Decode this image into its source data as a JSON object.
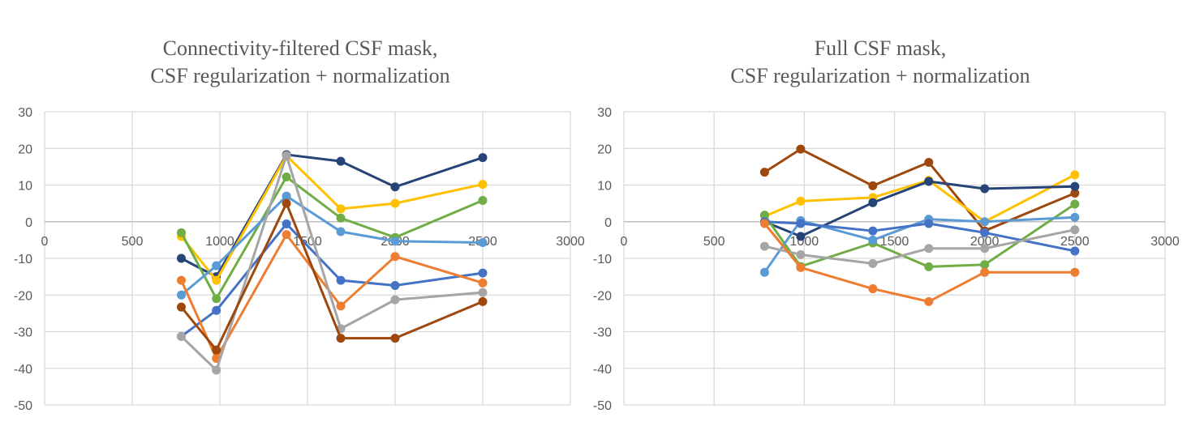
{
  "chart_data": [
    {
      "type": "line",
      "title": [
        "Connectivity-filtered CSF mask,",
        "CSF regularization + normalization"
      ],
      "xlabel": "",
      "ylabel": "",
      "xlim": [
        0,
        3000
      ],
      "ylim": [
        -50,
        30
      ],
      "xticks": [
        0,
        500,
        1000,
        1500,
        2000,
        2500,
        3000
      ],
      "yticks": [
        30,
        20,
        10,
        0,
        -10,
        -20,
        -30,
        -40,
        -50
      ],
      "grid": true,
      "legend": "none",
      "x": [
        780,
        980,
        1380,
        1690,
        2000,
        2500
      ],
      "series": [
        {
          "color": "#264478",
          "values": [
            -10,
            -15,
            18.3,
            16.5,
            9.5,
            17.5
          ]
        },
        {
          "color": "#FFC000",
          "values": [
            -4,
            -16,
            18,
            3.5,
            5,
            10.2
          ]
        },
        {
          "color": "#70AD47",
          "values": [
            -3,
            -21,
            12.2,
            1,
            -4.3,
            5.8
          ]
        },
        {
          "color": "#5B9BD5",
          "values": [
            -20,
            -12,
            7,
            -2.7,
            -5.3,
            -5.7
          ]
        },
        {
          "color": "#4472C4",
          "values": [
            -31.3,
            -24.2,
            -0.6,
            -16,
            -17.4,
            -14
          ]
        },
        {
          "color": "#ED7D31",
          "values": [
            -16,
            -37.3,
            -3.5,
            -23,
            -9.5,
            -16.7
          ]
        },
        {
          "color": "#A5A5A5",
          "values": [
            -31.3,
            -40.5,
            18,
            -29.2,
            -21.3,
            -19.3
          ]
        },
        {
          "color": "#9E480E",
          "values": [
            -23.3,
            -35,
            5,
            -31.8,
            -31.8,
            -21.8
          ]
        }
      ]
    },
    {
      "type": "line",
      "title": [
        "Full CSF mask,",
        "CSF regularization + normalization"
      ],
      "xlabel": "",
      "ylabel": "",
      "xlim": [
        0,
        3000
      ],
      "ylim": [
        -50,
        30
      ],
      "xticks": [
        0,
        500,
        1000,
        1500,
        2000,
        2500,
        3000
      ],
      "yticks": [
        30,
        20,
        10,
        0,
        -10,
        -20,
        -30,
        -40,
        -50
      ],
      "grid": true,
      "legend": "none",
      "x": [
        780,
        980,
        1380,
        1690,
        2000,
        2500
      ],
      "series": [
        {
          "color": "#9E480E",
          "values": [
            13.5,
            19.8,
            9.8,
            16.2,
            -2.5,
            7.8
          ]
        },
        {
          "color": "#FFC000",
          "values": [
            1.5,
            5.6,
            6.6,
            11.3,
            0,
            12.8
          ]
        },
        {
          "color": "#264478",
          "values": [
            0,
            -4,
            5.2,
            11,
            9,
            9.6
          ]
        },
        {
          "color": "#70AD47",
          "values": [
            1.8,
            -12.2,
            -5.8,
            -12.3,
            -11.7,
            4.8
          ]
        },
        {
          "color": "#5B9BD5",
          "values": [
            -13.8,
            0.3,
            -5,
            0.7,
            0,
            1.2
          ]
        },
        {
          "color": "#4472C4",
          "values": [
            0,
            -0.5,
            -2.5,
            -0.5,
            -3,
            -8
          ]
        },
        {
          "color": "#A5A5A5",
          "values": [
            -6.7,
            -9,
            -11.4,
            -7.3,
            -7.3,
            -2.2
          ]
        },
        {
          "color": "#ED7D31",
          "values": [
            -0.5,
            -12.5,
            -18.3,
            -21.8,
            -13.8,
            -13.8
          ]
        }
      ]
    }
  ]
}
